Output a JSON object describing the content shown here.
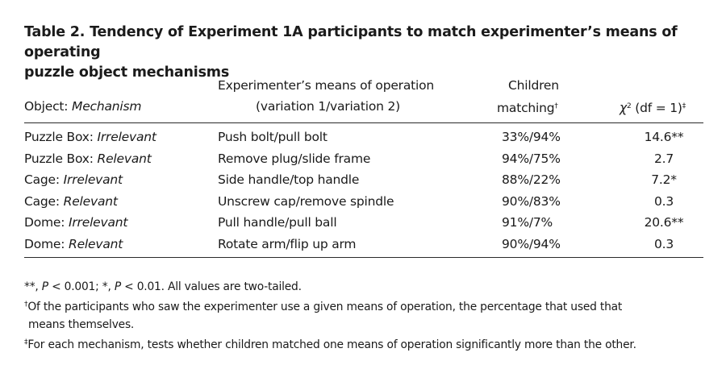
{
  "caption": {
    "line1": "Table 2. Tendency of Experiment 1A participants to match experimenter’s means of operating",
    "line2": "puzzle object mechanisms"
  },
  "table": {
    "header": {
      "object_mechanism": "Object: Mechanism",
      "means_line1": "Experimenter’s means of operation",
      "means_line2": "(variation 1/variation 2)",
      "children_line1": "Children",
      "children_line2": "matching",
      "children_mark": "†",
      "chi_label": "χ² (df = 1)",
      "chi_mark": "‡"
    },
    "rows": [
      {
        "object": "Puzzle Box: ",
        "mechanism": "Irrelevant",
        "means": "Push bolt/pull bolt",
        "matching": "33%/94%",
        "chi": "14.6**"
      },
      {
        "object": "Puzzle Box: ",
        "mechanism": "Relevant",
        "means": "Remove plug/slide frame",
        "matching": "94%/75%",
        "chi": "2.7"
      },
      {
        "object": "Cage: ",
        "mechanism": "Irrelevant",
        "means": "Side handle/top handle",
        "matching": "88%/22%",
        "chi": "7.2*"
      },
      {
        "object": "Cage: ",
        "mechanism": "Relevant",
        "means": "Unscrew cap/remove spindle",
        "matching": "90%/83%",
        "chi": "0.3"
      },
      {
        "object": "Dome: ",
        "mechanism": "Irrelevant",
        "means": "Pull handle/pull ball",
        "matching": "91%/7%",
        "chi": "20.6**"
      },
      {
        "object": "Dome: ",
        "mechanism": "Relevant",
        "means": "Rotate arm/flip up arm",
        "matching": "90%/94%",
        "chi": "0.3"
      }
    ]
  },
  "footnotes": {
    "sig_prefix": "**, ",
    "sig_p1": "P",
    "sig_mid": " < 0.001; *, ",
    "sig_p2": "P",
    "sig_suffix": " < 0.01. All values are two-tailed.",
    "dagger_mark": "†",
    "dagger_text": "Of the participants who saw the experimenter use a given means of operation, the percentage that used that",
    "dagger_text2": "means themselves.",
    "ddagger_mark": "‡",
    "ddagger_text": "For each mechanism, tests whether children matched one means of operation significantly more than the other."
  }
}
